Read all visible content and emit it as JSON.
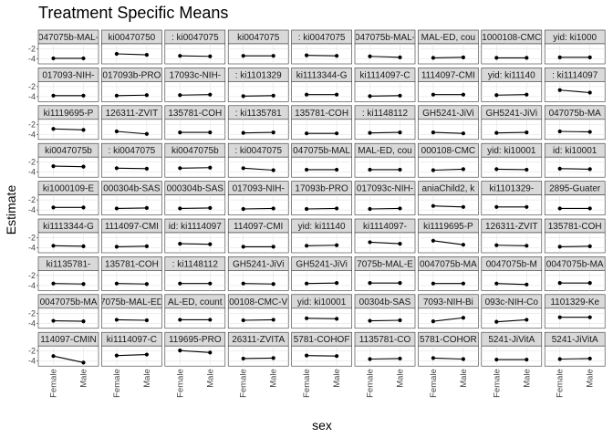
{
  "chart_data": {
    "type": "faceted-dot-errorbar",
    "title": "Treatment Specific Means",
    "xlabel": "sex",
    "ylabel": "Estimate",
    "x_categories": [
      "Female",
      "Male"
    ],
    "y_ticks": [
      -2,
      -4
    ],
    "y_tick_labels": [
      "-2",
      "-4"
    ],
    "ylim": [
      -5,
      -1
    ],
    "grid": true,
    "facet_rows": 9,
    "facet_cols": 9,
    "facet_strips": [
      [
        "047075b-MAL-",
        "ki00470750",
        ": ki0047075",
        "ki0047075",
        ": ki0047075",
        "047075b-MAL-",
        "MAL-ED, cou",
        "1000108-CMC",
        "yid: ki1000"
      ],
      [
        "017093-NIH-",
        "017093b-PRO",
        "17093c-NIH-",
        ": ki1101329",
        "ki1113344-G",
        "ki1114097-C",
        "1114097-CMI",
        "yid: ki11140",
        ": ki1114097"
      ],
      [
        "ki1119695-P",
        "126311-ZVIT",
        "135781-COH",
        ": ki1135781",
        "135781-COH",
        ": ki1148112",
        "GH5241-JiVi",
        "GH5241-JiVi",
        "047075b-MA"
      ],
      [
        "ki0047075b",
        ": ki0047075",
        "ki0047075b",
        ": ki0047075",
        "047075b-MAL",
        "MAL-ED, cou",
        "000108-CMC",
        "yid: ki10001",
        "id: ki10001"
      ],
      [
        "ki1000109-E",
        "000304b-SAS",
        "000304b-SAS",
        "017093-NIH-",
        "17093b-PRO",
        "017093c-NIH-",
        "aniaChild2, k",
        "ki1101329-",
        "2895-Guater"
      ],
      [
        "ki1113344-G",
        "1114097-CMI",
        "id: ki1114097",
        "114097-CMI",
        "yid: ki11140",
        "ki1114097-",
        "ki1119695-P",
        "126311-ZVIT",
        "135781-COH"
      ],
      [
        "ki1135781-",
        "135781-COH",
        ": ki1148112",
        "GH5241-JiVi",
        "GH5241-JiVi",
        "7075b-MAL-E",
        "0047075b-MA",
        "0047075b-M",
        "0047075b-MA"
      ],
      [
        "0047075b-MA",
        "7075b-MAL-ED",
        "AL-ED, count",
        "00108-CMC-V",
        "yid: ki10001",
        "00304b-SAS",
        "7093-NIH-Bi",
        "093c-NIH-Co",
        "1101329-Ke"
      ],
      [
        "114097-CMIN",
        "ki1114097-C",
        "119695-PRO",
        "26311-ZVITA",
        "5781-COHOF",
        "1135781-CO",
        "5781-COHOR",
        "5241-JiVitA",
        "5241-JiVitA"
      ]
    ],
    "estimates": [
      [
        [
          -3.9,
          -3.9
        ],
        [
          -3.0,
          -3.2
        ],
        [
          -3.4,
          -3.5
        ],
        [
          -3.4,
          -3.4
        ],
        [
          -3.3,
          -3.4
        ],
        [
          -3.5,
          -3.7
        ],
        [
          -3.8,
          -3.7
        ],
        [
          -3.8,
          -3.8
        ],
        [
          -3.7,
          -3.7
        ]
      ],
      [
        [
          -3.8,
          -3.8
        ],
        [
          -3.8,
          -3.7
        ],
        [
          -3.7,
          -3.6
        ],
        [
          -3.9,
          -3.8
        ],
        [
          -3.6,
          -3.6
        ],
        [
          -3.9,
          -3.8
        ],
        [
          -3.6,
          -3.6
        ],
        [
          -3.7,
          -3.6
        ],
        [
          -2.7,
          -3.2
        ]
      ],
      [
        [
          -2.9,
          -3.1
        ],
        [
          -3.4,
          -3.9
        ],
        [
          -3.6,
          -3.6
        ],
        [
          -3.7,
          -3.6
        ],
        [
          -3.8,
          -3.8
        ],
        [
          -3.7,
          -3.6
        ],
        [
          -3.6,
          -3.8
        ],
        [
          -3.7,
          -3.6
        ],
        [
          -3.4,
          -3.5
        ]
      ],
      [
        [
          -2.8,
          -2.9
        ],
        [
          -3.2,
          -3.3
        ],
        [
          -3.2,
          -3.1
        ],
        [
          -3.2,
          -3.6
        ],
        [
          -3.5,
          -3.5
        ],
        [
          -3.5,
          -3.5
        ],
        [
          -3.6,
          -3.4
        ],
        [
          -3.4,
          -3.5
        ],
        [
          -3.3,
          -3.4
        ]
      ],
      [
        [
          -3.5,
          -3.5
        ],
        [
          -3.7,
          -3.6
        ],
        [
          -3.7,
          -3.6
        ],
        [
          -3.8,
          -3.7
        ],
        [
          -3.8,
          -3.7
        ],
        [
          -3.8,
          -3.7
        ],
        [
          -3.2,
          -3.4
        ],
        [
          -3.4,
          -3.4
        ],
        [
          -3.7,
          -3.7
        ]
      ],
      [
        [
          -3.6,
          -3.7
        ],
        [
          -3.8,
          -3.7
        ],
        [
          -3.2,
          -3.3
        ],
        [
          -3.8,
          -3.8
        ],
        [
          -3.6,
          -3.5
        ],
        [
          -2.9,
          -3.2
        ],
        [
          -2.6,
          -3.4
        ],
        [
          -3.5,
          -3.6
        ],
        [
          -3.8,
          -3.7
        ]
      ],
      [
        [
          -3.6,
          -3.7
        ],
        [
          -3.6,
          -3.7
        ],
        [
          -3.6,
          -3.6
        ],
        [
          -3.6,
          -3.7
        ],
        [
          -3.6,
          -3.5
        ],
        [
          -3.5,
          -3.5
        ],
        [
          -3.6,
          -3.6
        ],
        [
          -3.6,
          -3.8
        ],
        [
          -3.5,
          -3.5
        ]
      ],
      [
        [
          -3.5,
          -3.6
        ],
        [
          -3.3,
          -3.4
        ],
        [
          -3.3,
          -3.3
        ],
        [
          -3.4,
          -3.3
        ],
        [
          -3.0,
          -3.1
        ],
        [
          -3.5,
          -3.4
        ],
        [
          -3.6,
          -2.9
        ],
        [
          -3.7,
          -3.3
        ],
        [
          -2.8,
          -2.8
        ]
      ],
      [
        [
          -3.0,
          -4.3
        ],
        [
          -2.9,
          -2.7
        ],
        [
          -1.9,
          -2.3
        ],
        [
          -3.5,
          -3.4
        ],
        [
          -2.9,
          -3.0
        ],
        [
          -3.6,
          -3.5
        ],
        [
          -3.4,
          -3.6
        ],
        [
          -3.7,
          -3.7
        ],
        [
          -3.6,
          -3.5
        ]
      ]
    ]
  }
}
